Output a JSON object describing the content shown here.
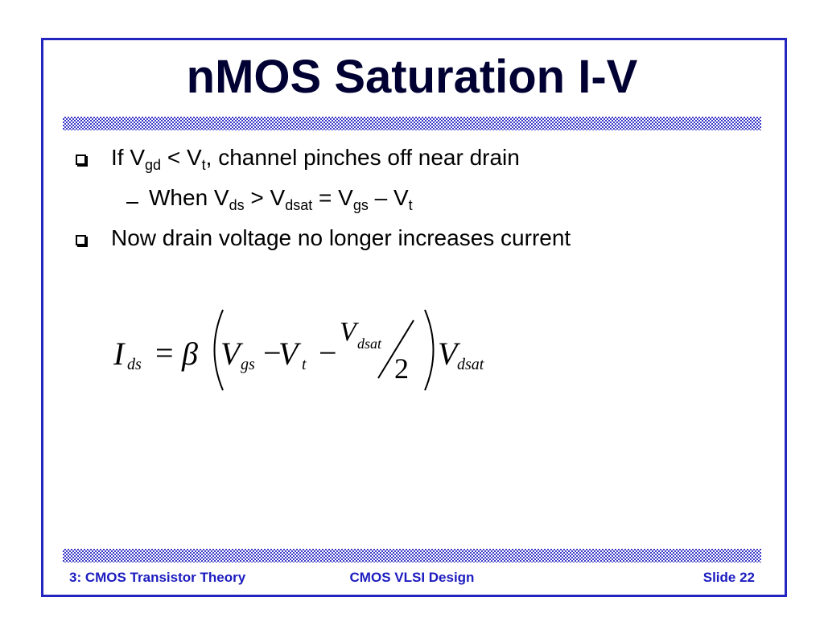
{
  "title": "nMOS Saturation I-V",
  "bullets": [
    {
      "runs": [
        [
          "If V",
          "gd"
        ],
        [
          " < V",
          "t"
        ],
        [
          ", channel pinches off near drain"
        ]
      ],
      "children": [
        {
          "runs": [
            [
              "When V",
              "ds"
            ],
            [
              " > V",
              "dsat"
            ],
            [
              " = V",
              "gs"
            ],
            [
              " – V",
              "t"
            ]
          ]
        }
      ]
    },
    {
      "runs": [
        [
          "Now drain voltage no longer increases current"
        ]
      ]
    }
  ],
  "equation": {
    "tokens": [
      "I",
      "ds",
      "=",
      "β",
      "V",
      "gs",
      "−",
      "V",
      "t",
      "−",
      "V",
      "dsat",
      "2",
      "V",
      "dsat"
    ]
  },
  "footer": {
    "left": "3: CMOS Transistor Theory",
    "center": "CMOS VLSI Design",
    "right": "Slide 22"
  }
}
